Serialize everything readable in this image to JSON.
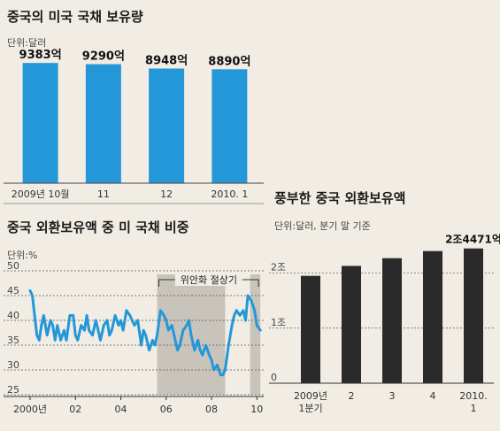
{
  "chart_data": [
    {
      "type": "bar",
      "title": "중국의 미국 국채 보유량",
      "unit": "단위:달러",
      "categories": [
        "2009년 10월",
        "11",
        "12",
        "2010. 1"
      ],
      "values": [
        9383,
        9290,
        8948,
        8890
      ],
      "data_labels": [
        "9383억",
        "9290억",
        "8948억",
        "8890억"
      ],
      "ylim": [
        0,
        10500
      ],
      "color": "#2397d8"
    },
    {
      "type": "line",
      "title": "중국 외환보유액 중 미 국채 비중",
      "unit": "단위:%",
      "yticks": [
        25,
        30,
        35,
        40,
        45,
        50
      ],
      "ylim": [
        25,
        50
      ],
      "xlim": [
        2000,
        2010.3
      ],
      "xtick_values": [
        2000,
        2002,
        2004,
        2006,
        2008,
        2010
      ],
      "xtick_labels": [
        "2000년",
        "02",
        "04",
        "06",
        "08",
        "10"
      ],
      "annotation": "위안화 절상기",
      "shaded_ranges": [
        [
          2005.6,
          2008.6
        ],
        [
          2009.7,
          2010.15
        ]
      ],
      "color": "#2397d8",
      "series": [
        {
          "x": [
            2000.0,
            2000.1,
            2000.2,
            2000.3,
            2000.4,
            2000.5,
            2000.6,
            2000.75,
            2000.9,
            2001.0,
            2001.1,
            2001.2,
            2001.35,
            2001.5,
            2001.6,
            2001.75,
            2001.9,
            2002.0,
            2002.1,
            2002.25,
            2002.4,
            2002.5,
            2002.6,
            2002.75,
            2002.9,
            2003.0,
            2003.1,
            2003.25,
            2003.4,
            2003.5,
            2003.6,
            2003.75,
            2003.9,
            2004.0,
            2004.1,
            2004.25,
            2004.4,
            2004.5,
            2004.6,
            2004.75,
            2004.9,
            2005.0,
            2005.1,
            2005.25,
            2005.4,
            2005.5,
            2005.6,
            2005.75,
            2005.9,
            2006.0,
            2006.1,
            2006.25,
            2006.4,
            2006.5,
            2006.6,
            2006.75,
            2006.9,
            2007.0,
            2007.1,
            2007.25,
            2007.4,
            2007.5,
            2007.6,
            2007.75,
            2007.9,
            2008.0,
            2008.1,
            2008.25,
            2008.4,
            2008.5,
            2008.6,
            2008.75,
            2008.9,
            2009.0,
            2009.1,
            2009.25,
            2009.4,
            2009.5,
            2009.6,
            2009.75,
            2009.9,
            2010.0,
            2010.15
          ],
          "y": [
            46,
            45,
            41,
            37,
            36,
            39,
            41,
            37,
            40,
            39,
            36,
            39,
            36,
            38,
            36,
            41,
            41,
            37,
            36,
            39,
            38,
            41,
            38,
            37,
            40,
            38,
            36,
            39,
            40,
            37,
            38,
            41,
            39,
            40,
            38,
            42,
            41,
            40,
            39,
            40,
            35,
            38,
            37,
            34,
            36,
            35,
            37,
            42,
            41,
            40,
            38,
            39,
            36,
            34,
            35,
            38,
            39,
            40,
            37,
            34,
            36,
            34,
            33,
            35,
            33,
            32,
            30,
            31,
            29,
            29,
            30,
            35,
            39,
            41,
            42,
            41,
            42,
            40,
            45,
            44,
            42,
            39,
            38
          ]
        }
      ]
    },
    {
      "type": "bar",
      "title": "풍부한 중국 외환보유액",
      "unit": "단위:달러, 분기 말 기준",
      "categories": [
        "2009년\n1분기",
        "2",
        "3",
        "4",
        "2010.\n1"
      ],
      "values": [
        1.95,
        2.13,
        2.27,
        2.4,
        2.4471
      ],
      "data_labels": [
        "",
        "",
        "",
        "",
        "2조4471억"
      ],
      "ylim": [
        0,
        2.7
      ],
      "yticks": [
        0,
        1,
        2
      ],
      "ytick_labels": [
        "0",
        "1조",
        "2조"
      ],
      "color": "#2a2a2a"
    }
  ]
}
